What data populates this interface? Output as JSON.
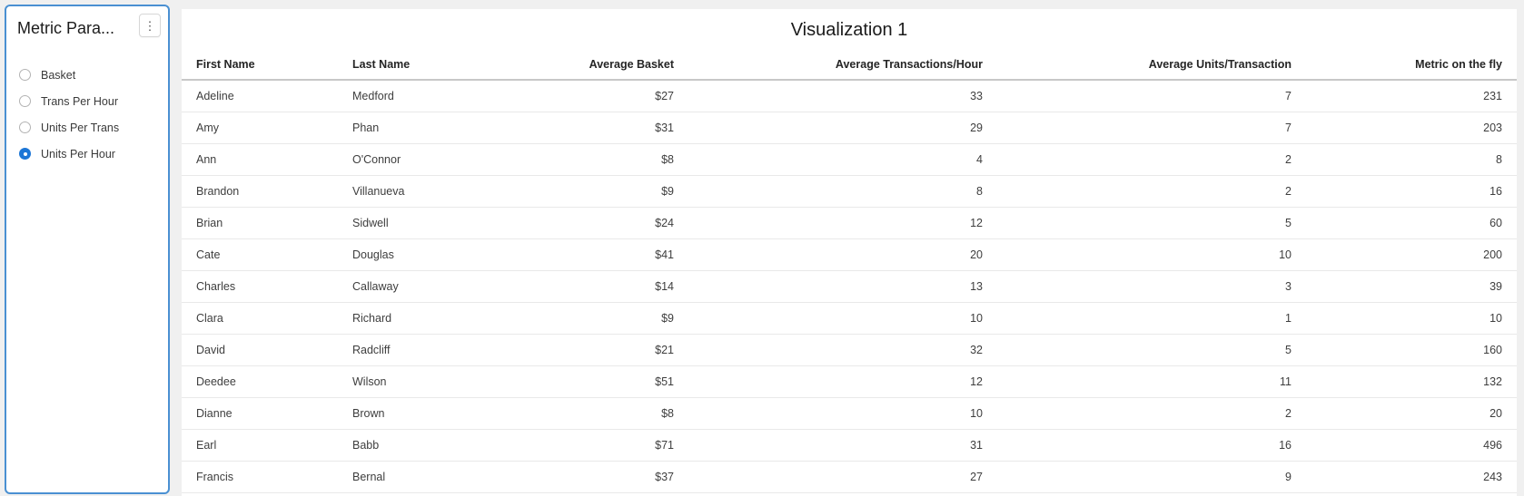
{
  "page": {
    "background_color": "#f0f0f0"
  },
  "parameter_panel": {
    "title": "Metric Para...",
    "menu_icon": "kebab-vertical-icon",
    "border_color": "#4a90d2",
    "accent_color": "#1d76d6",
    "options": [
      {
        "label": "Basket",
        "selected": false
      },
      {
        "label": "Trans Per Hour",
        "selected": false
      },
      {
        "label": "Units Per Trans",
        "selected": false
      },
      {
        "label": "Units Per Hour",
        "selected": true
      }
    ]
  },
  "visualization": {
    "title": "Visualization 1",
    "table": {
      "columns": [
        {
          "label": "First Name",
          "align": "left"
        },
        {
          "label": "Last Name",
          "align": "left"
        },
        {
          "label": "Average Basket",
          "align": "right"
        },
        {
          "label": "Average Transactions/Hour",
          "align": "right"
        },
        {
          "label": "Average Units/Transaction",
          "align": "right"
        },
        {
          "label": "Metric on the fly",
          "align": "right"
        }
      ],
      "rows": [
        [
          "Adeline",
          "Medford",
          "$27",
          "33",
          "7",
          "231"
        ],
        [
          "Amy",
          "Phan",
          "$31",
          "29",
          "7",
          "203"
        ],
        [
          "Ann",
          "O'Connor",
          "$8",
          "4",
          "2",
          "8"
        ],
        [
          "Brandon",
          "Villanueva",
          "$9",
          "8",
          "2",
          "16"
        ],
        [
          "Brian",
          "Sidwell",
          "$24",
          "12",
          "5",
          "60"
        ],
        [
          "Cate",
          "Douglas",
          "$41",
          "20",
          "10",
          "200"
        ],
        [
          "Charles",
          "Callaway",
          "$14",
          "13",
          "3",
          "39"
        ],
        [
          "Clara",
          "Richard",
          "$9",
          "10",
          "1",
          "10"
        ],
        [
          "David",
          "Radcliff",
          "$21",
          "32",
          "5",
          "160"
        ],
        [
          "Deedee",
          "Wilson",
          "$51",
          "12",
          "11",
          "132"
        ],
        [
          "Dianne",
          "Brown",
          "$8",
          "10",
          "2",
          "20"
        ],
        [
          "Earl",
          "Babb",
          "$71",
          "31",
          "16",
          "496"
        ],
        [
          "Francis",
          "Bernal",
          "$37",
          "27",
          "9",
          "243"
        ]
      ]
    }
  }
}
